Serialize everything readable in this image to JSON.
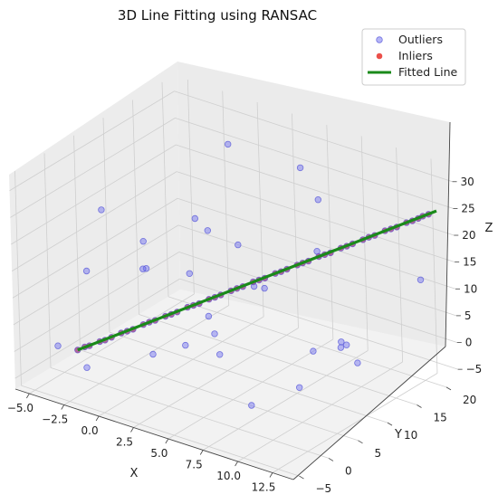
{
  "chart_data": {
    "type": "scatter",
    "title": "3D Line Fitting using RANSAC",
    "xlabel": "X",
    "ylabel": "Y",
    "zlabel": "Z",
    "xlim": [
      -6,
      14
    ],
    "ylim": [
      -6,
      22
    ],
    "zlim": [
      -7,
      33
    ],
    "x_ticks": [
      "−5.0",
      "−2.5",
      "0.0",
      "2.5",
      "5.0",
      "7.5",
      "10.0",
      "12.5"
    ],
    "y_ticks": [
      "−5",
      "0",
      "5",
      "10",
      "15",
      "20"
    ],
    "z_ticks": [
      "−5",
      "0",
      "5",
      "10",
      "15",
      "20",
      "25",
      "30"
    ],
    "legend_position": "top-right",
    "grid": true,
    "colors": {
      "outliers": "#6b6bf0",
      "inliers": "#e8312a",
      "fitted_line": "#1a8a1a",
      "pane": "#f2f2f2"
    },
    "series": [
      {
        "name": "Outliers",
        "marker": "circle",
        "points": [
          [
            -4.2,
            5.1,
            20.6
          ],
          [
            -2.8,
            -1.3,
            -3.4
          ],
          [
            0.6,
            11.7,
            16.4
          ],
          [
            -1.5,
            6.8,
            -5.2
          ],
          [
            5.4,
            -3.6,
            9.2
          ],
          [
            8.7,
            2.3,
            18.7
          ],
          [
            1.9,
            16.2,
            4.1
          ],
          [
            -3.1,
            9.4,
            12.8
          ],
          [
            10.3,
            13.8,
            -1.5
          ],
          [
            3.2,
            -4.7,
            22.4
          ],
          [
            12.1,
            7.9,
            7.3
          ],
          [
            -0.7,
            18.5,
            26.9
          ],
          [
            6.8,
            19.2,
            -4.1
          ],
          [
            4.1,
            1.6,
            28.3
          ],
          [
            -2.2,
            14.9,
            3.9
          ],
          [
            9.6,
            -2.5,
            0.8
          ],
          [
            13.4,
            17.6,
            14.1
          ],
          [
            7.5,
            10.4,
            -6.2
          ],
          [
            -4.8,
            3.7,
            9.6
          ],
          [
            1.3,
            -0.9,
            18.2
          ],
          [
            11.2,
            5.5,
            25.6
          ],
          [
            2.7,
            8.3,
            -2.7
          ],
          [
            -1.1,
            20.6,
            6.4
          ],
          [
            5.9,
            15.3,
            30.2
          ],
          [
            8.2,
            -5.1,
            14.7
          ],
          [
            0.1,
            12.6,
            -0.6
          ],
          [
            -3.6,
            -4.2,
            1.9
          ],
          [
            12.8,
            0.7,
            11.5
          ],
          [
            4.6,
            21.1,
            19.3
          ],
          [
            10.9,
            9.7,
            4.6
          ]
        ]
      },
      {
        "name": "Inliers",
        "marker": "circle",
        "points": [
          [
            -4.0,
            0.0,
            -2.0
          ],
          [
            -3.4,
            0.6,
            -1.1
          ],
          [
            -2.9,
            1.2,
            -0.3
          ],
          [
            -2.3,
            1.8,
            0.6
          ],
          [
            -1.8,
            2.3,
            1.5
          ],
          [
            -1.2,
            2.9,
            2.3
          ],
          [
            -0.7,
            3.5,
            3.2
          ],
          [
            -0.1,
            4.1,
            4.1
          ],
          [
            0.4,
            4.7,
            4.9
          ],
          [
            1.0,
            5.3,
            5.8
          ],
          [
            1.5,
            5.9,
            6.7
          ],
          [
            2.1,
            6.5,
            7.5
          ],
          [
            2.6,
            7.0,
            8.4
          ],
          [
            3.2,
            7.6,
            9.3
          ],
          [
            3.7,
            8.2,
            10.1
          ],
          [
            4.3,
            8.8,
            11.0
          ],
          [
            4.8,
            9.4,
            11.9
          ],
          [
            5.4,
            10.0,
            12.7
          ],
          [
            5.9,
            10.6,
            13.6
          ],
          [
            6.5,
            11.2,
            14.5
          ],
          [
            7.0,
            11.8,
            15.3
          ],
          [
            7.6,
            12.3,
            16.2
          ],
          [
            8.1,
            12.9,
            17.1
          ],
          [
            8.7,
            13.5,
            17.9
          ],
          [
            9.2,
            14.1,
            18.8
          ],
          [
            9.8,
            14.7,
            19.7
          ],
          [
            10.3,
            15.3,
            20.5
          ],
          [
            10.9,
            15.9,
            21.4
          ],
          [
            11.4,
            16.5,
            22.3
          ],
          [
            12.0,
            17.1,
            23.1
          ],
          [
            12.5,
            17.6,
            24.0
          ],
          [
            13.1,
            18.2,
            24.9
          ],
          [
            13.6,
            18.8,
            25.7
          ],
          [
            -3.7,
            0.5,
            -1.5
          ],
          [
            -2.6,
            1.4,
            0.1
          ],
          [
            -1.5,
            2.6,
            1.9
          ],
          [
            -0.4,
            3.8,
            3.7
          ],
          [
            0.7,
            5.0,
            5.3
          ],
          [
            1.8,
            6.2,
            7.1
          ],
          [
            2.9,
            7.3,
            8.8
          ],
          [
            4.0,
            8.5,
            10.6
          ],
          [
            5.1,
            9.7,
            12.3
          ],
          [
            6.2,
            10.9,
            14.0
          ],
          [
            7.3,
            12.0,
            15.8
          ],
          [
            8.4,
            13.2,
            17.5
          ],
          [
            9.5,
            14.4,
            19.2
          ],
          [
            10.6,
            15.6,
            21.0
          ],
          [
            11.7,
            16.8,
            22.7
          ],
          [
            12.8,
            17.9,
            24.4
          ],
          [
            13.3,
            18.5,
            25.3
          ]
        ]
      },
      {
        "name": "Fitted Line",
        "marker": "line",
        "points": [
          [
            -4.0,
            0.0,
            -2.0
          ],
          [
            14.0,
            19.2,
            26.4
          ]
        ]
      }
    ]
  }
}
